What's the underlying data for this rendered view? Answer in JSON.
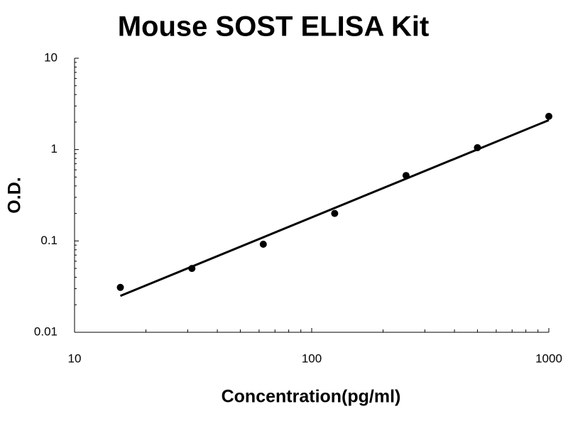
{
  "chart_data": {
    "type": "scatter",
    "title": "Mouse SOST ELISA Kit",
    "x_label": "Concentration(pg/ml)",
    "y_label": "O.D.",
    "x": [
      15.6,
      31.25,
      62.5,
      125,
      250,
      500,
      1000
    ],
    "values": [
      0.031,
      0.05,
      0.092,
      0.2,
      0.52,
      1.05,
      2.31
    ],
    "color": "#000000",
    "trendline": {
      "x": [
        15.6,
        1000
      ],
      "values": [
        0.025,
        2.1
      ],
      "color": "#000000"
    },
    "x_log": true,
    "y_log": true,
    "xlim": [
      10,
      1000
    ],
    "ylim": [
      0.01,
      10
    ],
    "xticks": [
      10,
      100,
      1000
    ],
    "yticks": [
      0.01,
      0.1,
      1,
      10
    ],
    "minor_ticks": true,
    "grid": false
  }
}
